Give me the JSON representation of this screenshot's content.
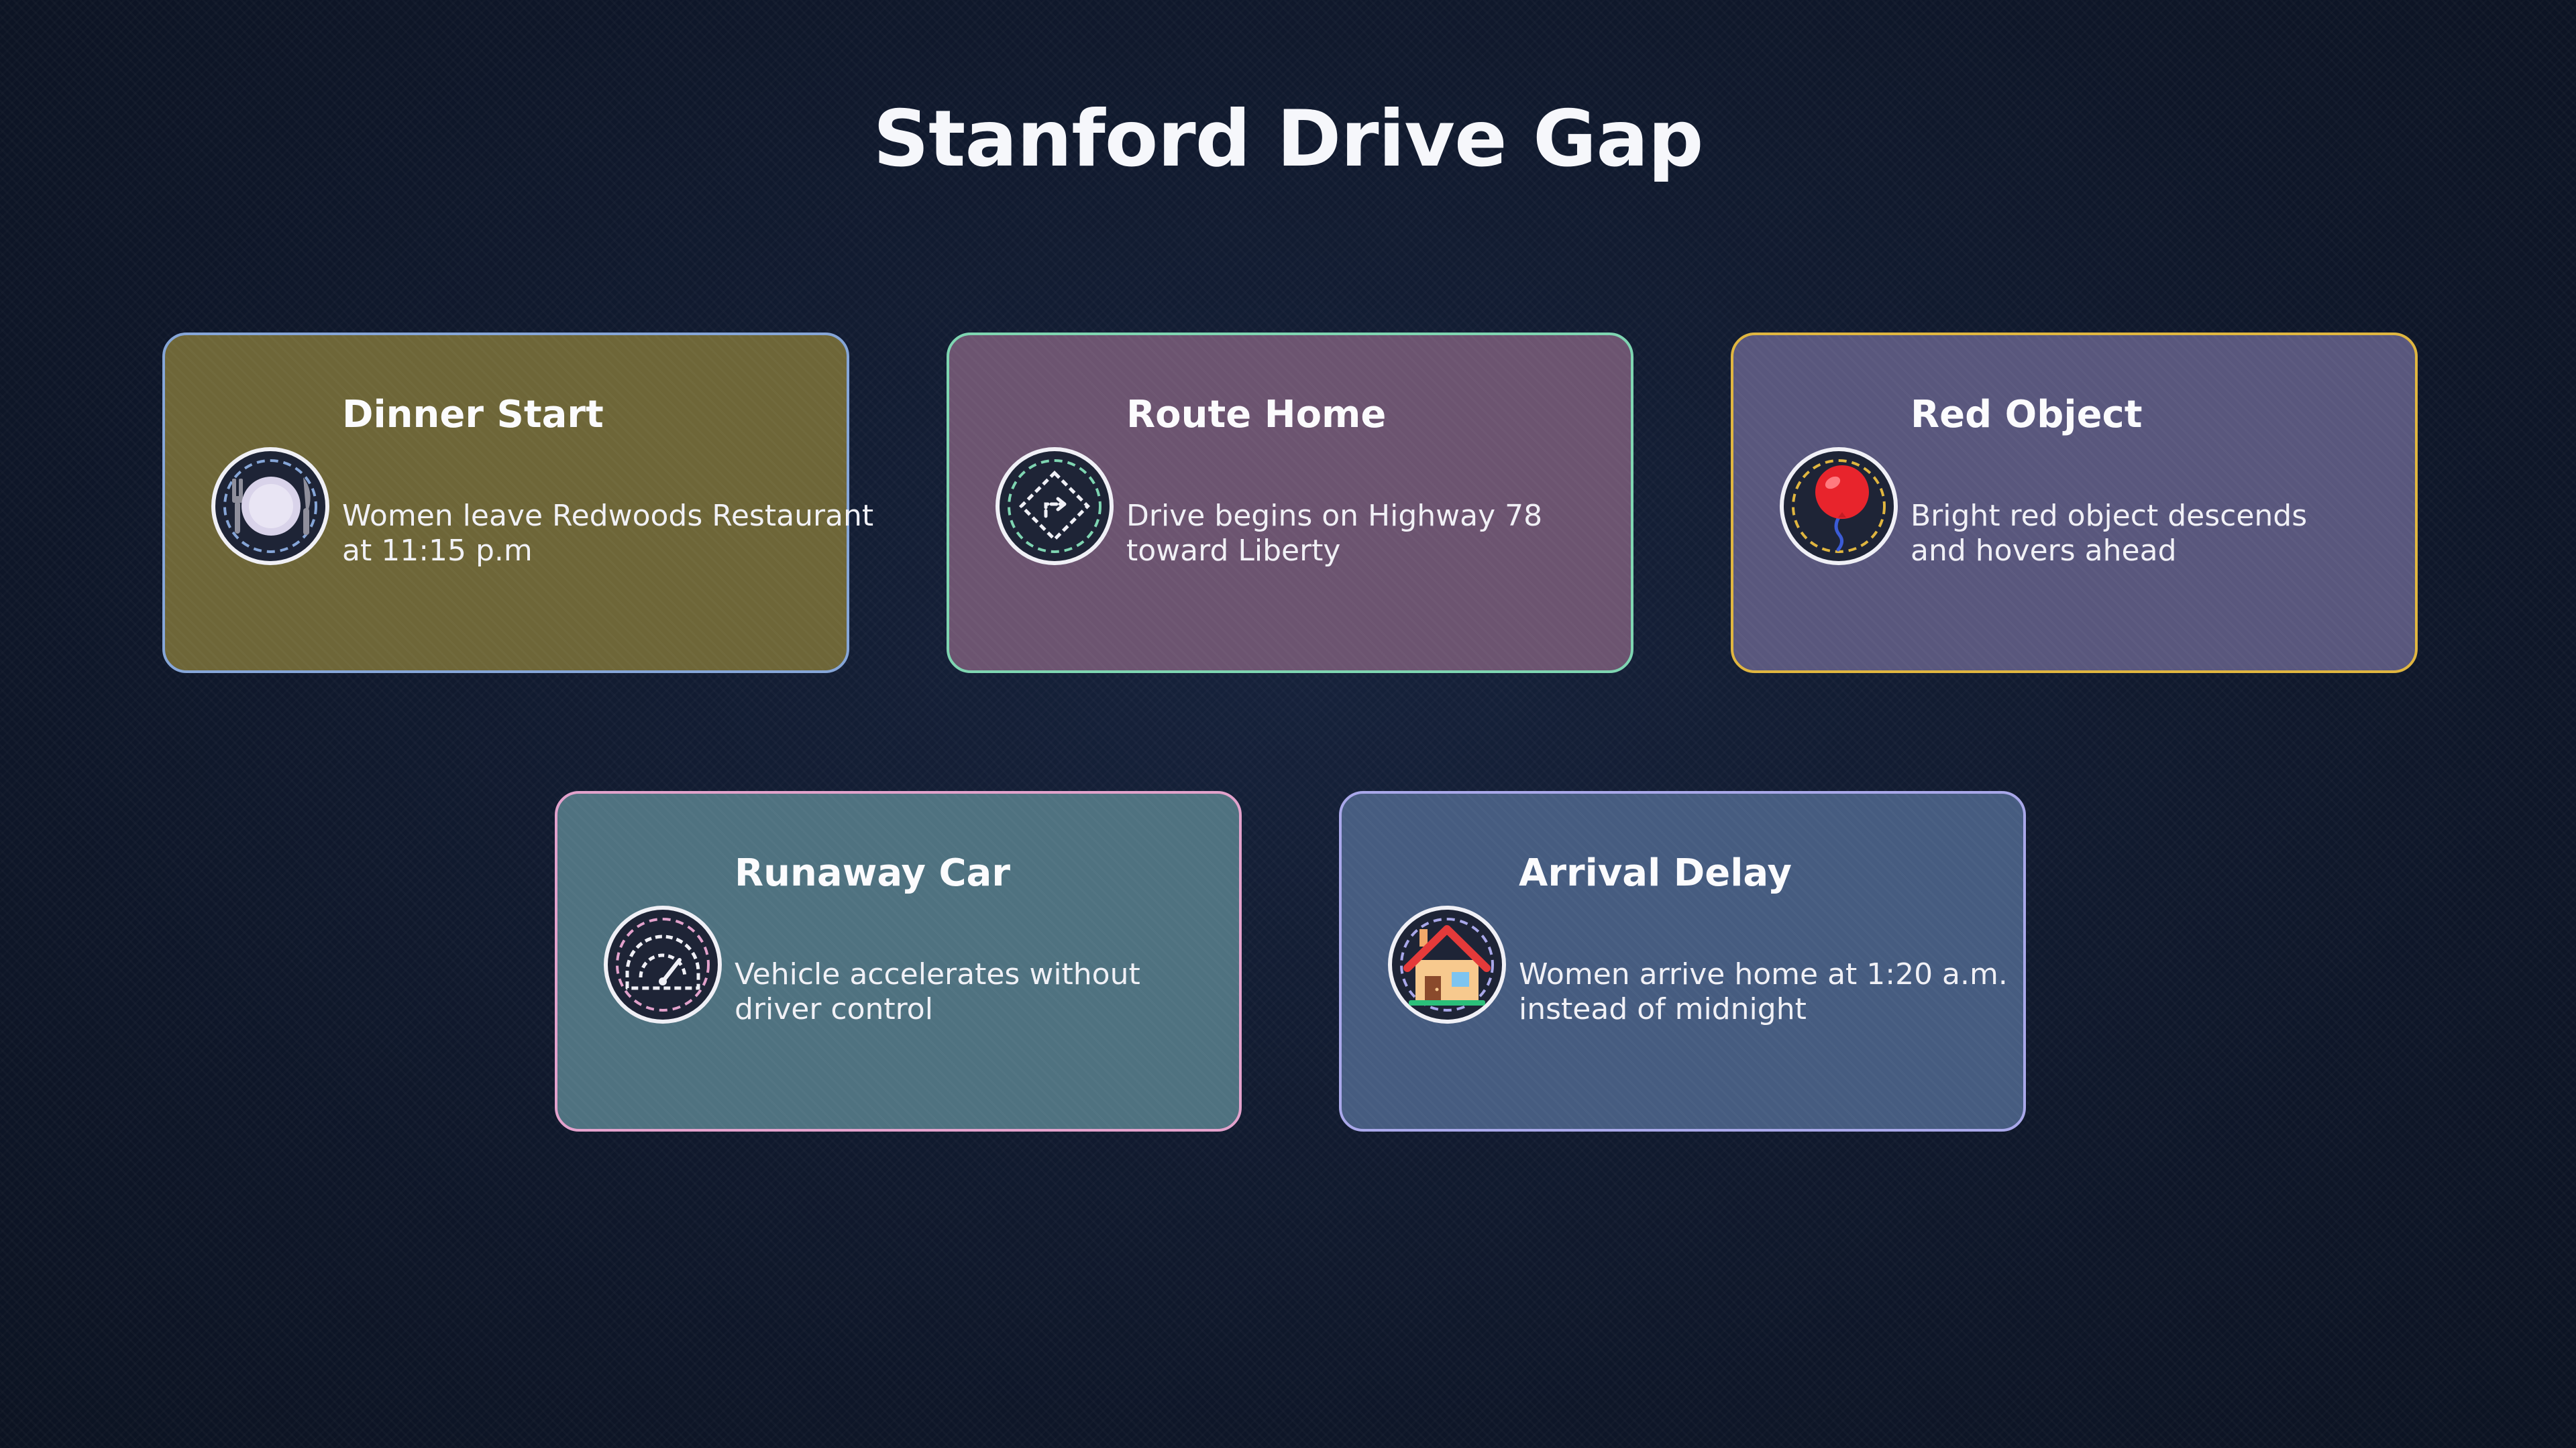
{
  "title": "Stanford Drive Gap",
  "colors": {
    "background": "#0f1729",
    "title_text": "#f6f7fb"
  },
  "cards": [
    {
      "title": "Dinner Start",
      "desc_line1": "Women leave Redwoods Restaurant",
      "desc_line2": "at 11:15 p.m",
      "icon": "plate-cutlery-icon",
      "fill": "#6e6638",
      "border": "#86a6d8"
    },
    {
      "title": "Route Home",
      "desc_line1": "Drive begins on Highway 78",
      "desc_line2": "toward Liberty",
      "icon": "turn-right-sign-icon",
      "fill": "#6c5470",
      "border": "#7fd6b2"
    },
    {
      "title": "Red Object",
      "desc_line1": "Bright red object descends",
      "desc_line2": "and hovers ahead",
      "icon": "red-balloon-icon",
      "fill": "#59577d",
      "border": "#e0b640"
    },
    {
      "title": "Runaway Car",
      "desc_line1": "Vehicle accelerates without",
      "desc_line2": "driver control",
      "icon": "speedometer-icon",
      "fill": "#4f7280",
      "border": "#e3a2cc"
    },
    {
      "title": "Arrival Delay",
      "desc_line1": "Women arrive home at 1:20 a.m.",
      "desc_line2": "instead of midnight",
      "icon": "house-icon",
      "fill": "#465c80",
      "border": "#a9a8ea"
    }
  ]
}
